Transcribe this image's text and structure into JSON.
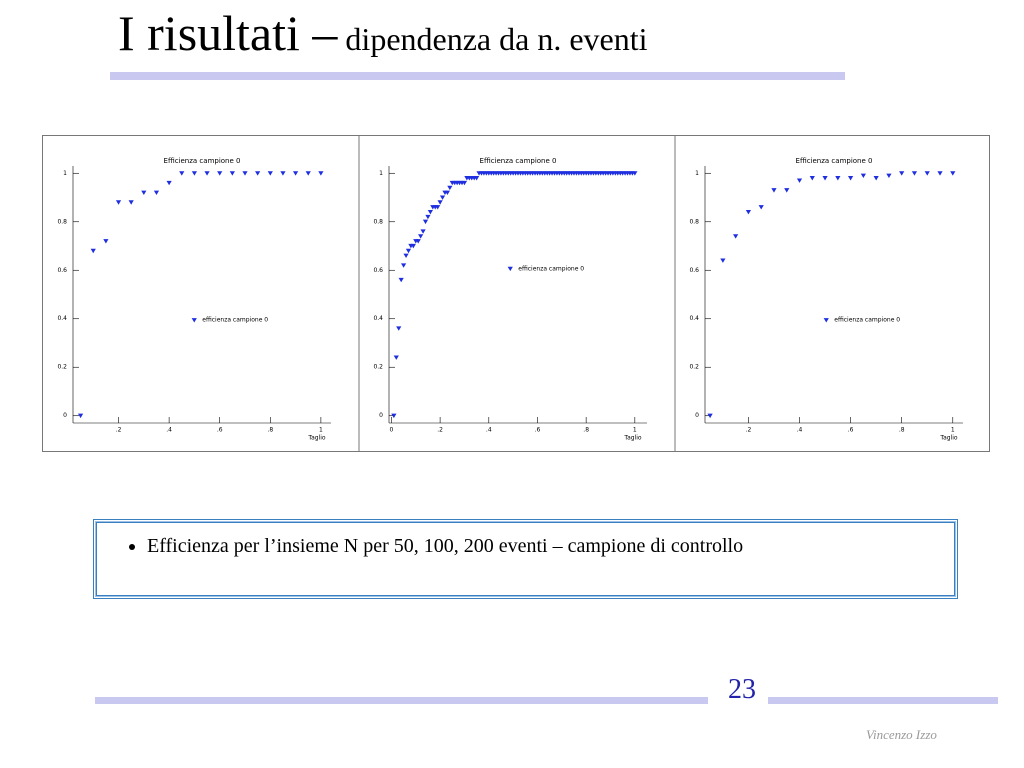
{
  "slide": {
    "title": "I risultati –",
    "subtitle": "dipendenza da n. eventi",
    "bullet": "Efficienza per l’insieme N per 50, 100, 200 eventi – campione di controllo",
    "page_number": 23,
    "author": "Vincenzo Izzo"
  },
  "chart_data": [
    {
      "type": "scatter",
      "title": "Efficienza campione 0",
      "x_label": "Taglio",
      "legend": "lower center",
      "xlim": [
        0.02,
        1.04
      ],
      "ylim": [
        -0.03,
        1.03
      ],
      "xticks": [
        {
          "value": 0.2,
          "label": ".2"
        },
        {
          "value": 0.4,
          "label": ".4"
        },
        {
          "value": 0.6,
          "label": ".6"
        },
        {
          "value": 0.8,
          "label": ".8"
        },
        1
      ],
      "yticks": [
        0,
        0.2,
        0.4,
        0.6,
        0.8,
        1
      ],
      "x": [
        0.05,
        0.1,
        0.15,
        0.2,
        0.25,
        0.3,
        0.35,
        0.4,
        0.45,
        0.5,
        0.55,
        0.6,
        0.65,
        0.7,
        0.75,
        0.8,
        0.85,
        0.9,
        0.95,
        1.0
      ],
      "series": [
        {
          "name": "efficienza campione 0",
          "color": "#1f2fe0",
          "values": [
            0,
            0.68,
            0.72,
            0.88,
            0.88,
            0.92,
            0.92,
            0.96,
            1,
            1,
            1,
            1,
            1,
            1,
            1,
            1,
            1,
            1,
            1,
            1
          ]
        }
      ]
    },
    {
      "type": "scatter",
      "title": "Efficienza campione 0",
      "x_label": "Taglio",
      "legend": "center",
      "xlim": [
        -0.01,
        1.05
      ],
      "ylim": [
        -0.03,
        1.03
      ],
      "xticks": [
        0,
        {
          "value": 0.2,
          "label": ".2"
        },
        {
          "value": 0.4,
          "label": ".4"
        },
        {
          "value": 0.6,
          "label": ".6"
        },
        {
          "value": 0.8,
          "label": ".8"
        },
        1
      ],
      "yticks": [
        0,
        0.2,
        0.4,
        0.6,
        0.8,
        1
      ],
      "x": [
        0.01,
        0.02,
        0.03,
        0.04,
        0.05,
        0.06,
        0.07,
        0.08,
        0.09,
        0.1,
        0.11,
        0.12,
        0.13,
        0.14,
        0.15,
        0.16,
        0.17,
        0.18,
        0.19,
        0.2,
        0.21,
        0.22,
        0.23,
        0.24,
        0.25,
        0.26,
        0.27,
        0.28,
        0.29,
        0.3,
        0.31,
        0.32,
        0.33,
        0.34,
        0.35,
        0.36,
        0.37,
        0.38,
        0.39,
        0.4,
        0.41,
        0.42,
        0.43,
        0.44,
        0.45,
        0.46,
        0.47,
        0.48,
        0.49,
        0.5,
        0.51,
        0.52,
        0.53,
        0.54,
        0.55,
        0.56,
        0.57,
        0.58,
        0.59,
        0.6,
        0.61,
        0.62,
        0.63,
        0.64,
        0.65,
        0.66,
        0.67,
        0.68,
        0.69,
        0.7,
        0.71,
        0.72,
        0.73,
        0.74,
        0.75,
        0.76,
        0.77,
        0.78,
        0.79,
        0.8,
        0.81,
        0.82,
        0.83,
        0.84,
        0.85,
        0.86,
        0.87,
        0.88,
        0.89,
        0.9,
        0.91,
        0.92,
        0.93,
        0.94,
        0.95,
        0.96,
        0.97,
        0.98,
        0.99,
        1.0
      ],
      "series": [
        {
          "name": "efficienza campione 0",
          "color": "#1f2fe0",
          "values": [
            0,
            0.24,
            0.36,
            0.56,
            0.62,
            0.66,
            0.68,
            0.7,
            0.7,
            0.72,
            0.72,
            0.74,
            0.76,
            0.8,
            0.82,
            0.84,
            0.86,
            0.86,
            0.86,
            0.88,
            0.9,
            0.92,
            0.92,
            0.94,
            0.96,
            0.96,
            0.96,
            0.96,
            0.96,
            0.96,
            0.98,
            0.98,
            0.98,
            0.98,
            0.98,
            1,
            1,
            1,
            1,
            1,
            1,
            1,
            1,
            1,
            1,
            1,
            1,
            1,
            1,
            1,
            1,
            1,
            1,
            1,
            1,
            1,
            1,
            1,
            1,
            1,
            1,
            1,
            1,
            1,
            1,
            1,
            1,
            1,
            1,
            1,
            1,
            1,
            1,
            1,
            1,
            1,
            1,
            1,
            1,
            1,
            1,
            1,
            1,
            1,
            1,
            1,
            1,
            1,
            1,
            1,
            1,
            1,
            1,
            1,
            1,
            1,
            1,
            1,
            1,
            1
          ]
        }
      ]
    },
    {
      "type": "scatter",
      "title": "Efficienza campione 0",
      "x_label": "Taglio",
      "legend": "lower center",
      "xlim": [
        0.03,
        1.04
      ],
      "ylim": [
        -0.03,
        1.03
      ],
      "xticks": [
        {
          "value": 0.2,
          "label": ".2"
        },
        {
          "value": 0.4,
          "label": ".4"
        },
        {
          "value": 0.6,
          "label": ".6"
        },
        {
          "value": 0.8,
          "label": ".8"
        },
        1
      ],
      "yticks": [
        0,
        0.2,
        0.4,
        0.6,
        0.8,
        1
      ],
      "x": [
        0.05,
        0.1,
        0.15,
        0.2,
        0.25,
        0.3,
        0.35,
        0.4,
        0.45,
        0.5,
        0.55,
        0.6,
        0.65,
        0.7,
        0.75,
        0.8,
        0.85,
        0.9,
        0.95,
        1.0
      ],
      "series": [
        {
          "name": "efficienza campione 0",
          "color": "#1f2fe0",
          "values": [
            0,
            0.64,
            0.74,
            0.84,
            0.86,
            0.93,
            0.93,
            0.97,
            0.98,
            0.98,
            0.98,
            0.98,
            0.99,
            0.98,
            0.99,
            1,
            1,
            1,
            1,
            1
          ]
        }
      ]
    }
  ]
}
